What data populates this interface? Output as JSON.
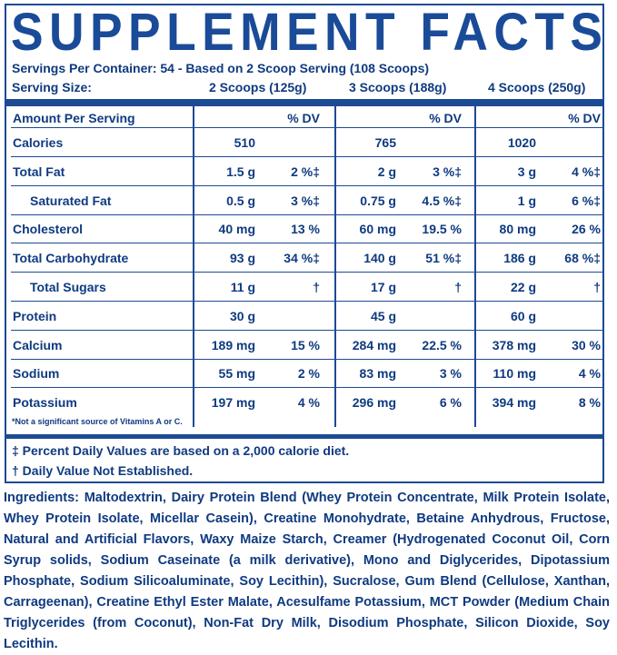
{
  "title": "SUPPLEMENT FACTS",
  "servings_per_container": "Servings Per Container: 54 - Based on 2 Scoop Serving (108 Scoops)",
  "serving_size_label": "Serving Size:",
  "columns": [
    "2 Scoops (125g)",
    "3 Scoops (188g)",
    "4 Scoops (250g)"
  ],
  "amount_per_serving": "Amount Per Serving",
  "dv_header": "% DV",
  "rows": [
    {
      "name": "Calories",
      "indent": false,
      "values": [
        [
          "510",
          ""
        ],
        [
          "765",
          ""
        ],
        [
          "1020",
          ""
        ]
      ]
    },
    {
      "name": "Total Fat",
      "indent": false,
      "values": [
        [
          "1.5 g",
          "2 %‡"
        ],
        [
          "2 g",
          "3 %‡"
        ],
        [
          "3 g",
          "4 %‡"
        ]
      ]
    },
    {
      "name": "Saturated Fat",
      "indent": true,
      "values": [
        [
          "0.5 g",
          "3 %‡"
        ],
        [
          "0.75 g",
          "4.5 %‡"
        ],
        [
          "1 g",
          "6 %‡"
        ]
      ]
    },
    {
      "name": "Cholesterol",
      "indent": false,
      "values": [
        [
          "40 mg",
          "13 %"
        ],
        [
          "60 mg",
          "19.5 %"
        ],
        [
          "80 mg",
          "26 %"
        ]
      ]
    },
    {
      "name": "Total Carbohydrate",
      "indent": false,
      "values": [
        [
          "93 g",
          "34 %‡"
        ],
        [
          "140 g",
          "51 %‡"
        ],
        [
          "186 g",
          "68 %‡"
        ]
      ]
    },
    {
      "name": "Total Sugars",
      "indent": true,
      "values": [
        [
          "11 g",
          "†"
        ],
        [
          "17 g",
          "†"
        ],
        [
          "22 g",
          "†"
        ]
      ]
    },
    {
      "name": "Protein",
      "indent": false,
      "values": [
        [
          "30 g",
          ""
        ],
        [
          "45 g",
          ""
        ],
        [
          "60 g",
          ""
        ]
      ]
    },
    {
      "name": "Calcium",
      "indent": false,
      "values": [
        [
          "189 mg",
          "15 %"
        ],
        [
          "284 mg",
          "22.5 %"
        ],
        [
          "378 mg",
          "30 %"
        ]
      ]
    },
    {
      "name": "Sodium",
      "indent": false,
      "values": [
        [
          "55 mg",
          "2 %"
        ],
        [
          "83 mg",
          "3 %"
        ],
        [
          "110 mg",
          "4 %"
        ]
      ]
    },
    {
      "name": "Potassium",
      "indent": false,
      "values": [
        [
          "197 mg",
          "4 %"
        ],
        [
          "296 mg",
          "6 %"
        ],
        [
          "394 mg",
          "8 %"
        ]
      ]
    }
  ],
  "vitamin_note": "*Not a significant source of Vitamins A or C.",
  "footnote_dv": "‡ Percent Daily Values are based on a 2,000 calorie diet.",
  "footnote_na": "† Daily Value Not Established.",
  "ingredients_label": "Ingredients:",
  "ingredients_text": "Maltodextrin, Dairy Protein Blend (Whey Protein Concentrate, Milk Protein Isolate, Whey Protein Isolate, Micellar Casein), Creatine Monohydrate, Betaine Anhydrous, Fructose, Natural and Artificial Flavors, Waxy Maize Starch, Creamer (Hydrogenated Coconut Oil, Corn Syrup solids, Sodium Caseinate (a milk derivative), Mono and Diglycerides, Dipotassium Phosphate, Sodium Silicoaluminate, Soy Lecithin), Sucralose, Gum Blend (Cellulose, Xanthan, Carrageenan), Creatine Ethyl Ester Malate, Acesulfame Potassium, MCT Powder (Medium Chain Triglycerides (from Coconut), Non-Fat Dry Milk, Disodium Phosphate, Silicon Dioxide, Soy Lecithin."
}
